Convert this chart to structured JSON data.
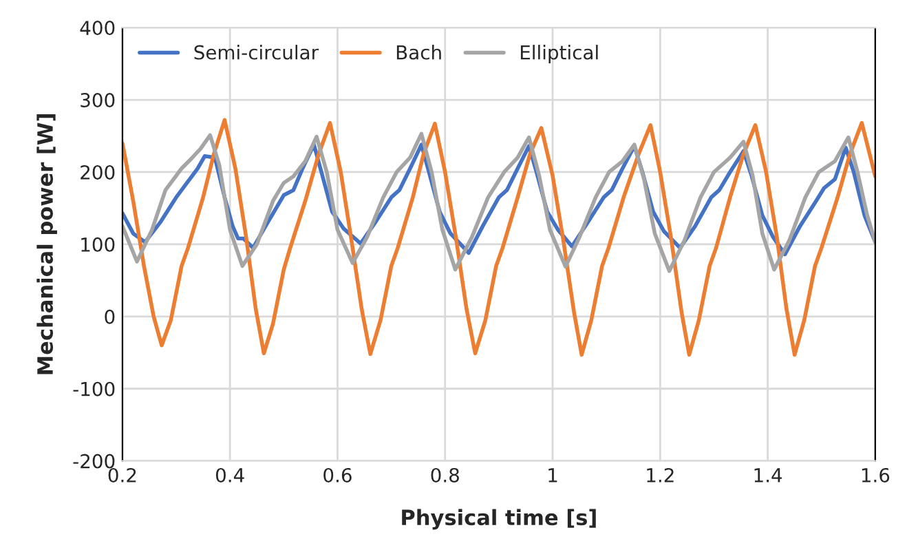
{
  "chart_data": {
    "type": "line",
    "xlabel": "Physical time [s]",
    "ylabel": "Mechanical power [W]",
    "xlim": [
      0.2,
      1.6
    ],
    "xticks": [
      0.2,
      0.4,
      0.6,
      0.8,
      1,
      1.2,
      1.4,
      1.6
    ],
    "ylim": [
      -200,
      400
    ],
    "yticks": [
      -200,
      -100,
      0,
      100,
      200,
      300,
      400
    ],
    "grid": true,
    "legend": "top left",
    "line_style": "solid",
    "marker": "none",
    "series": [
      {
        "name": "Semi-circular",
        "color": "#4472c4",
        "x": [
          0.2,
          0.22,
          0.242,
          0.27,
          0.3,
          0.32,
          0.34,
          0.353,
          0.372,
          0.39,
          0.405,
          0.415,
          0.425,
          0.443,
          0.47,
          0.5,
          0.518,
          0.535,
          0.556,
          0.57,
          0.59,
          0.611,
          0.643,
          0.67,
          0.7,
          0.715,
          0.735,
          0.756,
          0.77,
          0.79,
          0.81,
          0.844,
          0.87,
          0.9,
          0.915,
          0.935,
          0.956,
          0.97,
          0.99,
          1.01,
          1.036,
          1.065,
          1.095,
          1.11,
          1.13,
          1.152,
          1.167,
          1.187,
          1.207,
          1.237,
          1.265,
          1.295,
          1.31,
          1.33,
          1.355,
          1.37,
          1.39,
          1.41,
          1.432,
          1.46,
          1.49,
          1.505,
          1.525,
          1.545,
          1.56,
          1.58,
          1.6
        ],
        "values": [
          143,
          115,
          103,
          130,
          165,
          185,
          205,
          222,
          220,
          165,
          125,
          108,
          108,
          95,
          130,
          168,
          175,
          205,
          238,
          200,
          145,
          122,
          101,
          130,
          165,
          175,
          205,
          238,
          200,
          145,
          115,
          88,
          125,
          165,
          175,
          205,
          236,
          200,
          145,
          120,
          97,
          130,
          165,
          175,
          205,
          236,
          200,
          145,
          118,
          95,
          125,
          165,
          175,
          200,
          229,
          195,
          140,
          110,
          86,
          125,
          160,
          178,
          190,
          234,
          200,
          140,
          103
        ]
      },
      {
        "name": "Bach",
        "color": "#ed7d31",
        "x": [
          0.2,
          0.22,
          0.24,
          0.258,
          0.273,
          0.29,
          0.31,
          0.322,
          0.35,
          0.37,
          0.39,
          0.41,
          0.43,
          0.448,
          0.463,
          0.48,
          0.5,
          0.512,
          0.54,
          0.565,
          0.586,
          0.606,
          0.626,
          0.645,
          0.661,
          0.68,
          0.7,
          0.712,
          0.74,
          0.76,
          0.781,
          0.8,
          0.82,
          0.84,
          0.856,
          0.875,
          0.895,
          0.907,
          0.935,
          0.958,
          0.979,
          1.0,
          1.02,
          1.04,
          1.054,
          1.072,
          1.092,
          1.104,
          1.132,
          1.16,
          1.182,
          1.2,
          1.22,
          1.24,
          1.254,
          1.272,
          1.292,
          1.304,
          1.33,
          1.355,
          1.377,
          1.397,
          1.417,
          1.435,
          1.45,
          1.468,
          1.488,
          1.5,
          1.53,
          1.553,
          1.575,
          1.6
        ],
        "values": [
          240,
          160,
          70,
          0,
          -40,
          -5,
          70,
          95,
          165,
          225,
          272,
          205,
          110,
          10,
          -51,
          -10,
          65,
          95,
          160,
          225,
          268,
          200,
          105,
          10,
          -52,
          -5,
          70,
          95,
          165,
          225,
          267,
          200,
          110,
          10,
          -51,
          -5,
          70,
          95,
          165,
          225,
          261,
          195,
          105,
          5,
          -53,
          -5,
          70,
          95,
          165,
          225,
          265,
          200,
          110,
          5,
          -53,
          -5,
          70,
          95,
          165,
          225,
          265,
          200,
          110,
          10,
          -53,
          -5,
          70,
          95,
          165,
          225,
          268,
          194
        ]
      },
      {
        "name": "Elliptical",
        "color": "#a5a5a5",
        "x": [
          0.2,
          0.227,
          0.255,
          0.28,
          0.31,
          0.33,
          0.345,
          0.363,
          0.38,
          0.4,
          0.423,
          0.45,
          0.48,
          0.5,
          0.518,
          0.54,
          0.561,
          0.58,
          0.6,
          0.628,
          0.655,
          0.685,
          0.71,
          0.735,
          0.756,
          0.775,
          0.795,
          0.819,
          0.85,
          0.88,
          0.91,
          0.935,
          0.956,
          0.975,
          0.995,
          1.024,
          1.05,
          1.08,
          1.105,
          1.13,
          1.152,
          1.17,
          1.19,
          1.217,
          1.245,
          1.275,
          1.3,
          1.33,
          1.355,
          1.372,
          1.39,
          1.412,
          1.44,
          1.47,
          1.495,
          1.525,
          1.55,
          1.567,
          1.585,
          1.6
        ],
        "values": [
          125,
          76,
          120,
          175,
          205,
          220,
          232,
          251,
          210,
          120,
          70,
          100,
          160,
          185,
          194,
          215,
          249,
          200,
          120,
          74,
          110,
          165,
          200,
          220,
          253,
          200,
          120,
          65,
          110,
          165,
          200,
          220,
          248,
          195,
          120,
          69,
          110,
          165,
          200,
          215,
          238,
          190,
          115,
          63,
          105,
          165,
          200,
          220,
          242,
          195,
          115,
          65,
          105,
          165,
          200,
          215,
          248,
          200,
          140,
          103
        ]
      }
    ]
  }
}
